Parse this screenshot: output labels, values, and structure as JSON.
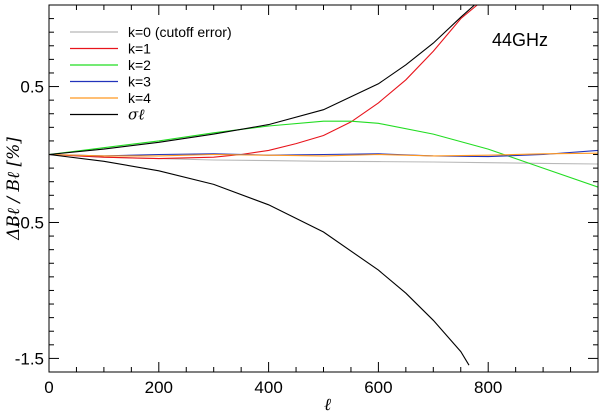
{
  "chart_data": {
    "type": "line",
    "title": "",
    "annotation": "44GHz",
    "xlabel": "ℓ",
    "ylabel": "ΔBℓ / Bℓ [%]",
    "xlim": [
      0,
      1000
    ],
    "ylim": [
      -1.6,
      1.1
    ],
    "xticks": [
      0,
      200,
      400,
      600,
      800
    ],
    "xtick_labels": [
      "0",
      "200",
      "400",
      "600",
      "800"
    ],
    "yticks": [
      -1.5,
      -0.5,
      0.5
    ],
    "ytick_labels": [
      "-1.5",
      "-0.5",
      "0.5"
    ],
    "grid": false,
    "legend_position": "top-left",
    "series": [
      {
        "name": "k=0 (cutoff error)",
        "color": "#b8b8b8",
        "x": [
          0,
          100,
          200,
          300,
          400,
          500,
          600,
          700,
          800,
          900,
          1000
        ],
        "y": [
          0,
          -0.02,
          -0.03,
          -0.04,
          -0.045,
          -0.05,
          -0.052,
          -0.055,
          -0.06,
          -0.065,
          -0.07
        ]
      },
      {
        "name": "k=1",
        "color": "#e8141c",
        "x": [
          0,
          100,
          200,
          300,
          350,
          400,
          450,
          500,
          550,
          600,
          650,
          700,
          750,
          780
        ],
        "y": [
          0,
          -0.02,
          -0.03,
          -0.02,
          0,
          0.03,
          0.08,
          0.14,
          0.24,
          0.38,
          0.55,
          0.76,
          1.0,
          1.1
        ]
      },
      {
        "name": "k=2",
        "color": "#22dd22",
        "x": [
          0,
          100,
          200,
          300,
          400,
          500,
          550,
          600,
          700,
          800,
          900,
          1000
        ],
        "y": [
          0,
          0.05,
          0.1,
          0.16,
          0.21,
          0.245,
          0.245,
          0.23,
          0.15,
          0.04,
          -0.1,
          -0.24
        ]
      },
      {
        "name": "k=3",
        "color": "#2233bb",
        "x": [
          0,
          100,
          200,
          300,
          400,
          500,
          600,
          700,
          800,
          900,
          1000
        ],
        "y": [
          0,
          -0.01,
          0,
          0.005,
          -0.005,
          0,
          0.005,
          -0.01,
          -0.015,
          0,
          0.03
        ]
      },
      {
        "name": "k=4",
        "color": "#ff9922",
        "x": [
          0,
          100,
          200,
          300,
          400,
          500,
          600,
          700,
          800,
          900,
          1000
        ],
        "y": [
          0,
          -0.01,
          -0.01,
          0,
          -0.005,
          -0.01,
          0,
          -0.01,
          -0.005,
          0.005,
          0.01
        ]
      },
      {
        "name": "σℓ",
        "color": "#000000",
        "x": [
          0,
          100,
          200,
          300,
          400,
          500,
          600,
          650,
          700,
          750,
          775
        ],
        "y": [
          0,
          0.04,
          0.09,
          0.15,
          0.22,
          0.33,
          0.52,
          0.66,
          0.82,
          1.01,
          1.1
        ]
      },
      {
        "name": "",
        "color": "#000000",
        "x": [
          0,
          100,
          200,
          300,
          400,
          500,
          600,
          650,
          700,
          750,
          765
        ],
        "y": [
          0,
          -0.05,
          -0.12,
          -0.22,
          -0.37,
          -0.57,
          -0.85,
          -1.02,
          -1.22,
          -1.45,
          -1.55
        ]
      }
    ]
  }
}
